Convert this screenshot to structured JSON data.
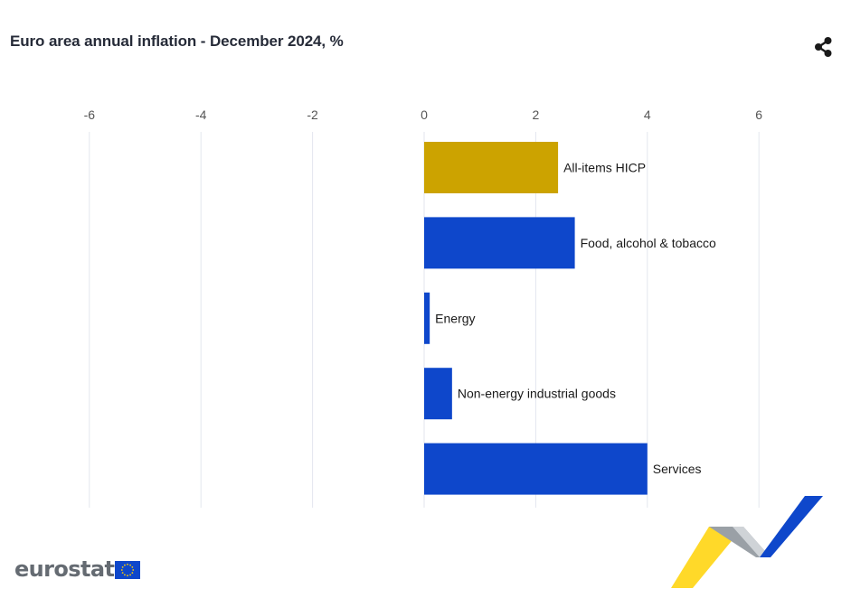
{
  "title": "Euro area annual inflation - December 2024, %",
  "icons": {
    "share": "share-icon",
    "flag": "eu-flag-icon"
  },
  "brand": {
    "wordmark": "eurostat"
  },
  "colors": {
    "highlight": "#cca300",
    "bar": "#0e47cb",
    "grid": "#e3e6ee",
    "tick_text": "#555555",
    "label_text": "#1a1a1a"
  },
  "chart_data": {
    "type": "bar",
    "orientation": "horizontal",
    "title": "Euro area annual inflation - December 2024, %",
    "categories": [
      "All-items HICP",
      "Food, alcohol & tobacco",
      "Energy",
      "Non-energy industrial goods",
      "Services"
    ],
    "values": [
      2.4,
      2.7,
      0.1,
      0.5,
      4.0
    ],
    "highlight_index": 0,
    "xlim": [
      -6,
      6
    ],
    "xticks": [
      -6,
      -4,
      -2,
      0,
      2,
      4,
      6
    ],
    "x_axis_position": "top",
    "grid": true,
    "legend": "none"
  }
}
